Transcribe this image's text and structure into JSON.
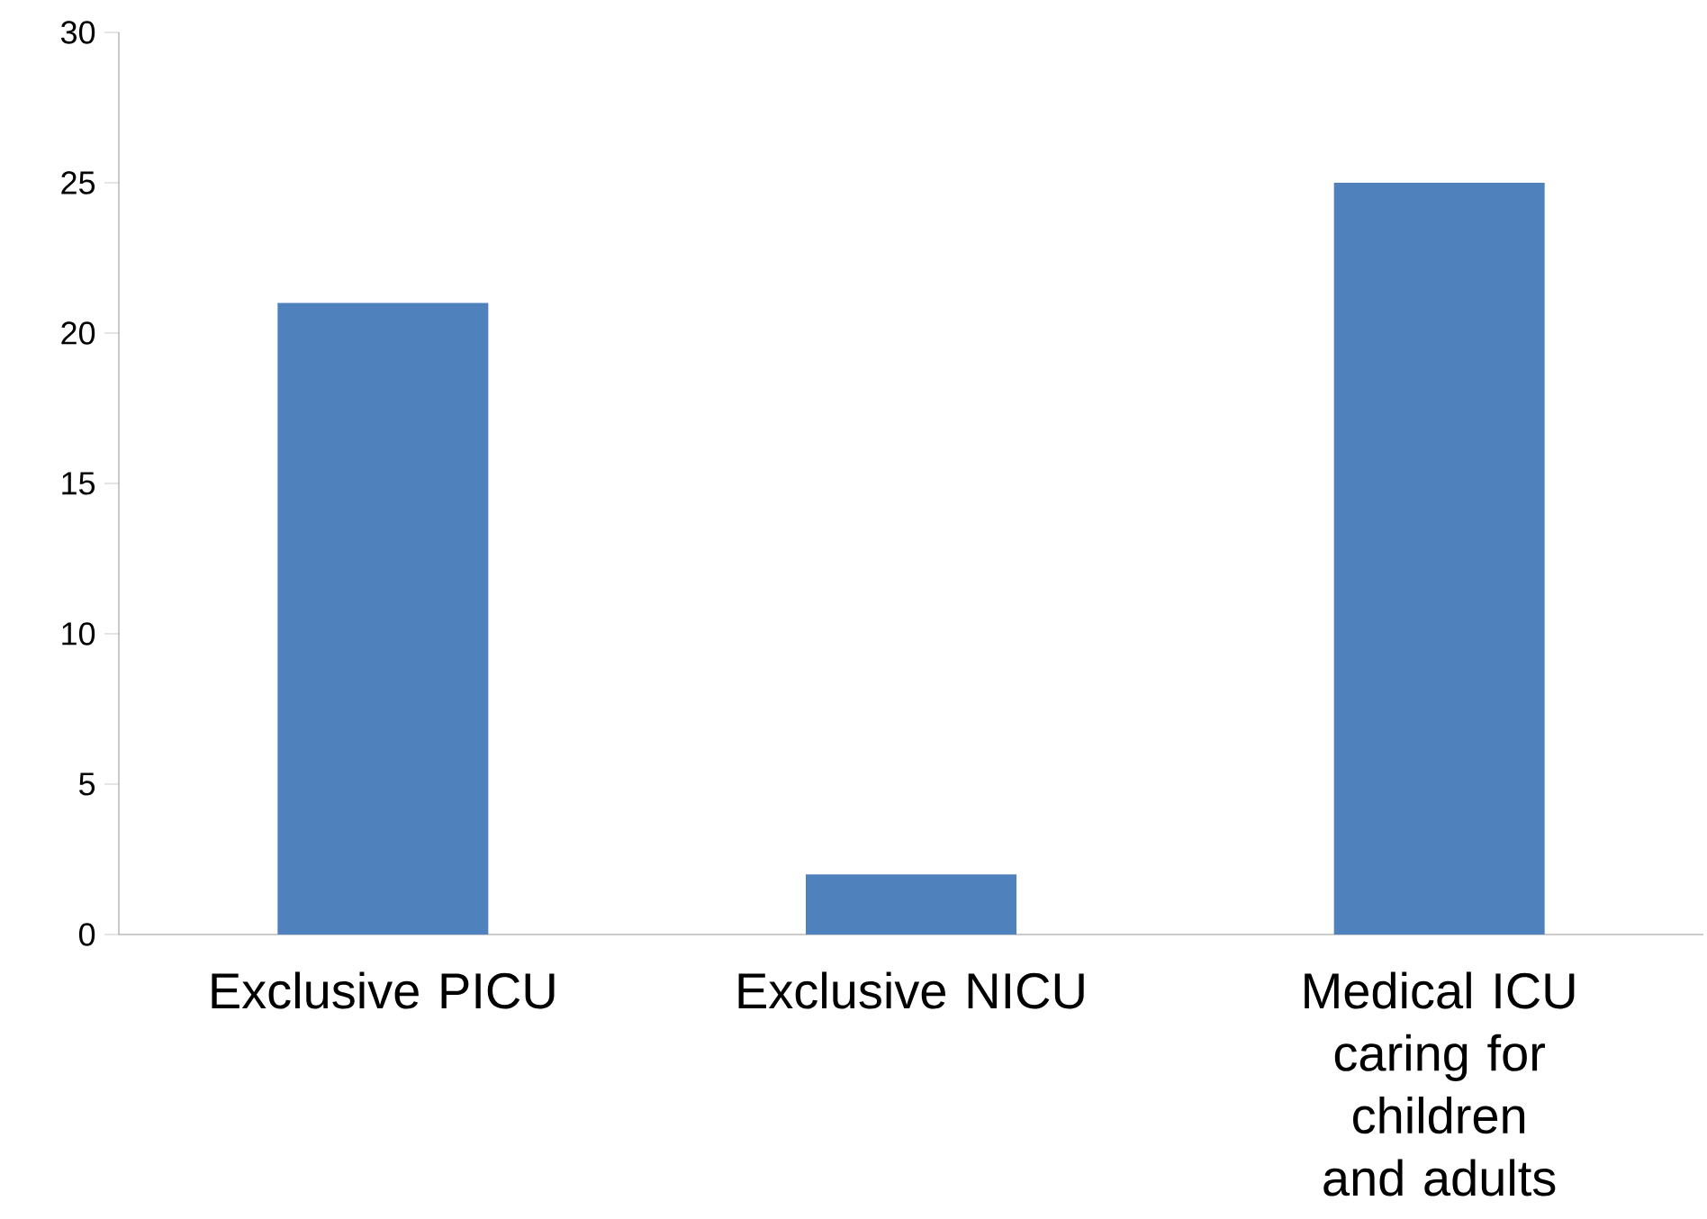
{
  "chart_data": {
    "type": "bar",
    "categories": [
      "Exclusive PICU",
      "Exclusive NICU",
      "Medical ICU caring for children and adults"
    ],
    "values": [
      21,
      2,
      25
    ],
    "color": "#4f81bd",
    "ylim": [
      0,
      30
    ],
    "yticks": [
      0,
      5,
      10,
      15,
      20,
      25,
      30
    ]
  }
}
